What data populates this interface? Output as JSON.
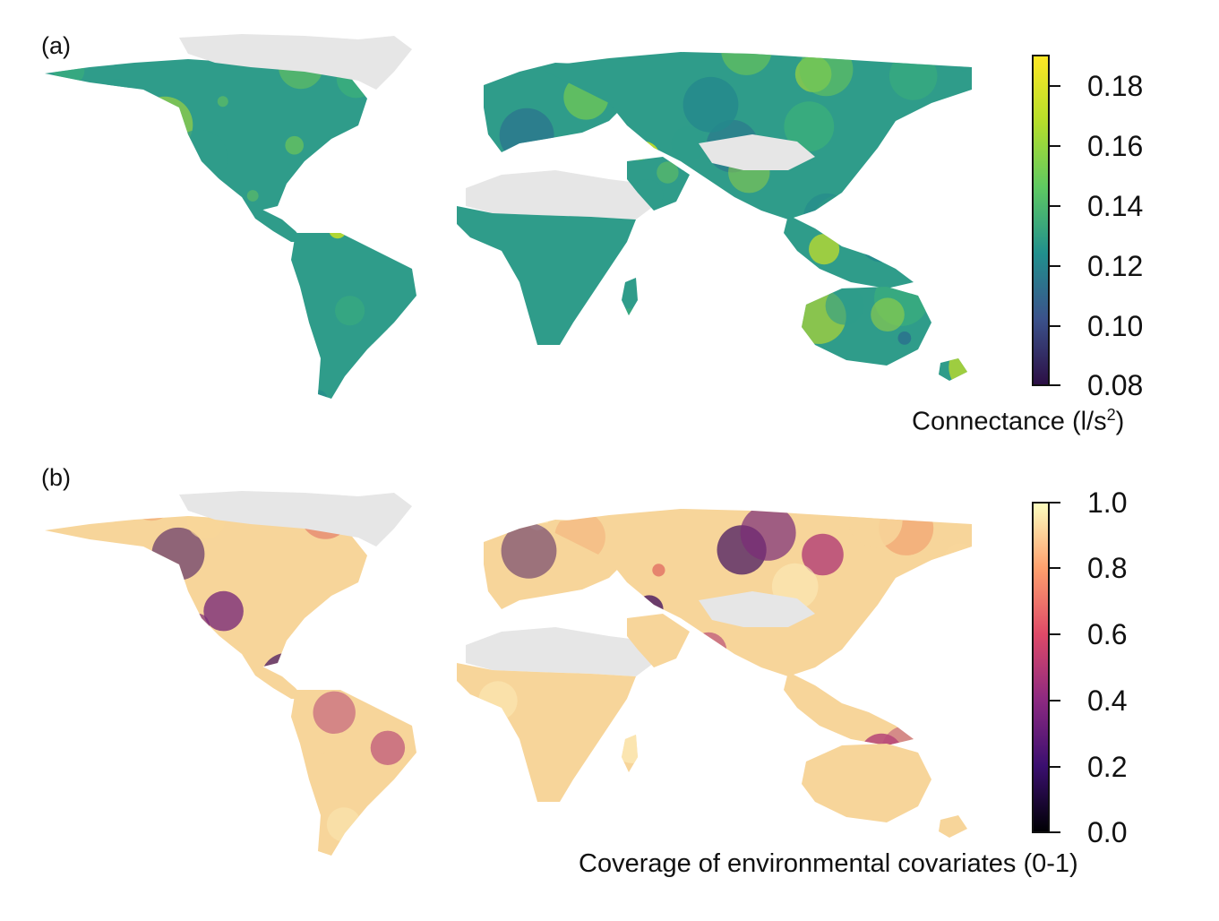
{
  "panels": [
    {
      "label": "(a)",
      "colorbar": {
        "title_main": "Connectance (l/s",
        "title_sup": "2",
        "title_end": ")",
        "colors": [
          "#2c0f45",
          "#3b528b",
          "#21908d",
          "#5ec962",
          "#b5de2b",
          "#fde725"
        ],
        "ticks": [
          "0.18",
          "0.16",
          "0.14",
          "0.12",
          "0.10",
          "0.08"
        ]
      },
      "palette": [
        "#2f9c8a",
        "#3bb07a",
        "#69c45a",
        "#a4d83a",
        "#c9e124",
        "#248a8c",
        "#2a6f8e"
      ]
    },
    {
      "label": "(b)",
      "colorbar": {
        "title": "Coverage of environmental covariates (0-1)",
        "colors": [
          "#000004",
          "#3b0f70",
          "#8c2981",
          "#de4968",
          "#fe9f6d",
          "#fcfdbf"
        ],
        "ticks": [
          "1.0",
          "0.8",
          "0.6",
          "0.4",
          "0.2",
          "0.0"
        ]
      },
      "palette": [
        "#f7d59a",
        "#f2a874",
        "#e06f62",
        "#b84a78",
        "#7a2c78",
        "#44135e",
        "#fbe8b4"
      ]
    }
  ]
}
